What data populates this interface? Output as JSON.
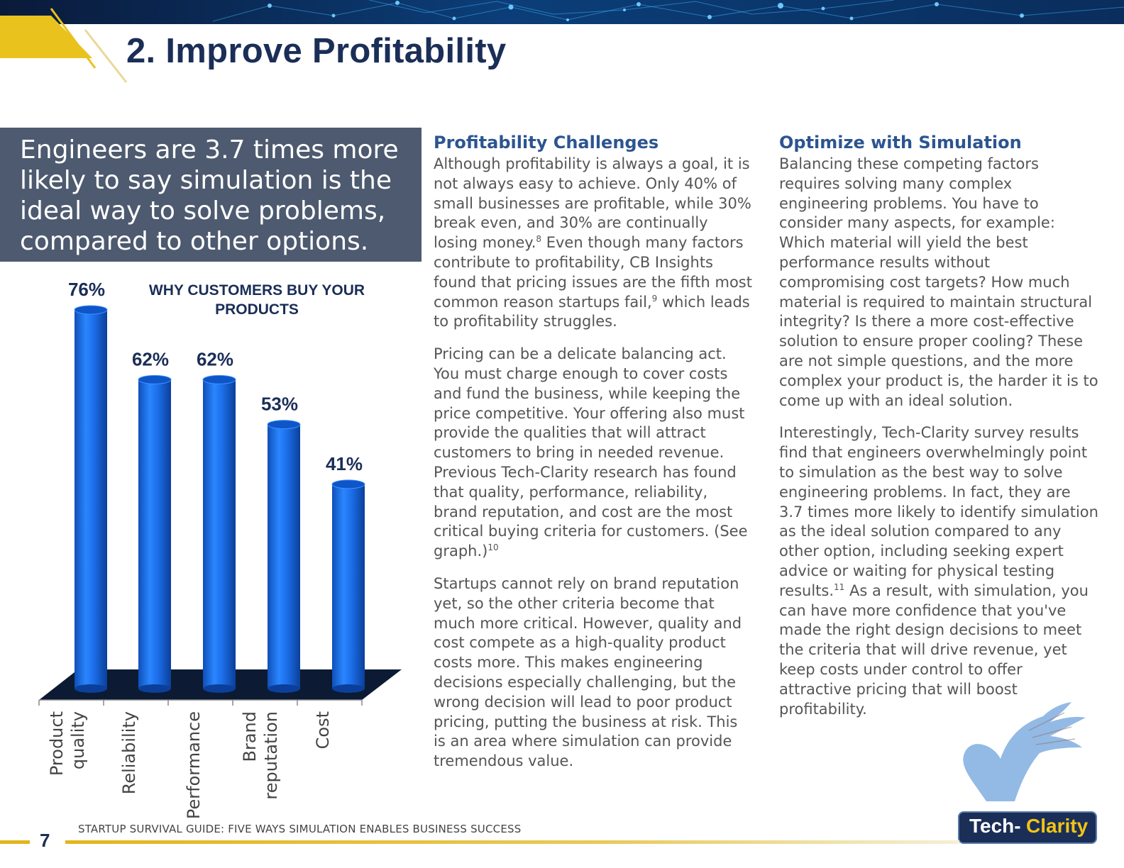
{
  "header": {
    "title": "2. Improve Profitability"
  },
  "callout": {
    "text": "Engineers are 3.7 times more likely to say simulation is the ideal way to solve problems, compared to other options."
  },
  "chart_data": {
    "type": "bar",
    "title": "WHY CUSTOMERS BUY YOUR PRODUCTS",
    "title_lines": [
      "WHY CUSTOMERS BUY YOUR",
      "PRODUCTS"
    ],
    "categories": [
      "Product quality",
      "Reliability",
      "Performance",
      "Brand reputation",
      "Cost"
    ],
    "category_lines": [
      [
        "Product",
        "quality"
      ],
      [
        "Reliability"
      ],
      [
        "Performance"
      ],
      [
        "Brand",
        "reputation"
      ],
      [
        "Cost"
      ]
    ],
    "values": [
      76,
      62,
      62,
      53,
      41
    ],
    "value_labels": [
      "76%",
      "62%",
      "62%",
      "53%",
      "41%"
    ],
    "unit": "%",
    "style": "3d-cylinder",
    "bar_color": "#1c6de8",
    "grid": false,
    "legend": "none"
  },
  "column1": {
    "heading": "Profitability Challenges",
    "p1": "Although profitability is always a goal, it is not always easy to achieve. Only 40% of small businesses are profitable, while 30% break even, and 30% are continually losing money.",
    "p1_ref": "8",
    "p1b": " Even though many factors contribute to profitability, CB Insights found that pricing issues are the fifth most common reason startups fail,",
    "p1b_ref": "9",
    "p1c": " which leads to profitability struggles.",
    "p2": "Pricing can be a delicate balancing act. You must charge enough to cover costs and fund the business, while keeping the price competitive. Your offering also must provide the qualities that will attract customers to bring in needed revenue. Previous Tech-Clarity research has found that quality, performance, reliability, brand reputation, and cost are the most critical buying criteria for customers. (See graph.)",
    "p2_ref": "10",
    "p3": "Startups cannot rely on brand reputation yet, so the other criteria become that much more critical. However, quality and cost compete as a high-quality product costs more. This makes engineering decisions especially challenging, but the wrong decision will lead to poor product pricing, putting the business at risk. This is an area where simulation can provide tremendous value."
  },
  "column2": {
    "heading": "Optimize with Simulation",
    "p1": "Balancing these competing factors requires solving many complex engineering problems. You have to consider many aspects, for example: Which material will yield the best performance results without compromising cost targets? How much material is required to maintain structural integrity? Is there a more cost-effective solution to ensure proper cooling? These are not simple questions, and the more complex your product is, the harder it is to come up with an ideal solution.",
    "p2": "Interestingly, Tech-Clarity survey results find that engineers overwhelmingly point to simulation as the best way to solve engineering problems. In fact, they are 3.7 times more likely to identify simulation as the ideal solution compared to any other option, including seeking expert advice or waiting for physical testing results.",
    "p2_ref": "11",
    "p2b": " As a result, with simulation, you can have more confidence that you've made the right design decisions to meet the criteria that will drive revenue, yet keep costs under control to offer attractive pricing that will boost profitability."
  },
  "footer": {
    "page_number": "7",
    "running_title": "STARTUP SURVIVAL GUIDE: FIVE WAYS SIMULATION ENABLES BUSINESS SUCCESS"
  },
  "logo": {
    "word1": "Tech-",
    "word2": "Clarity",
    "icon": "griffin-logo-icon"
  },
  "colors": {
    "title": "#1a2e57",
    "heading": "#2c5590",
    "body_text": "#555555",
    "callout_bg": "#4d5a6f",
    "accent_gold": "#e3b51c",
    "bar": "#1c6de8"
  }
}
